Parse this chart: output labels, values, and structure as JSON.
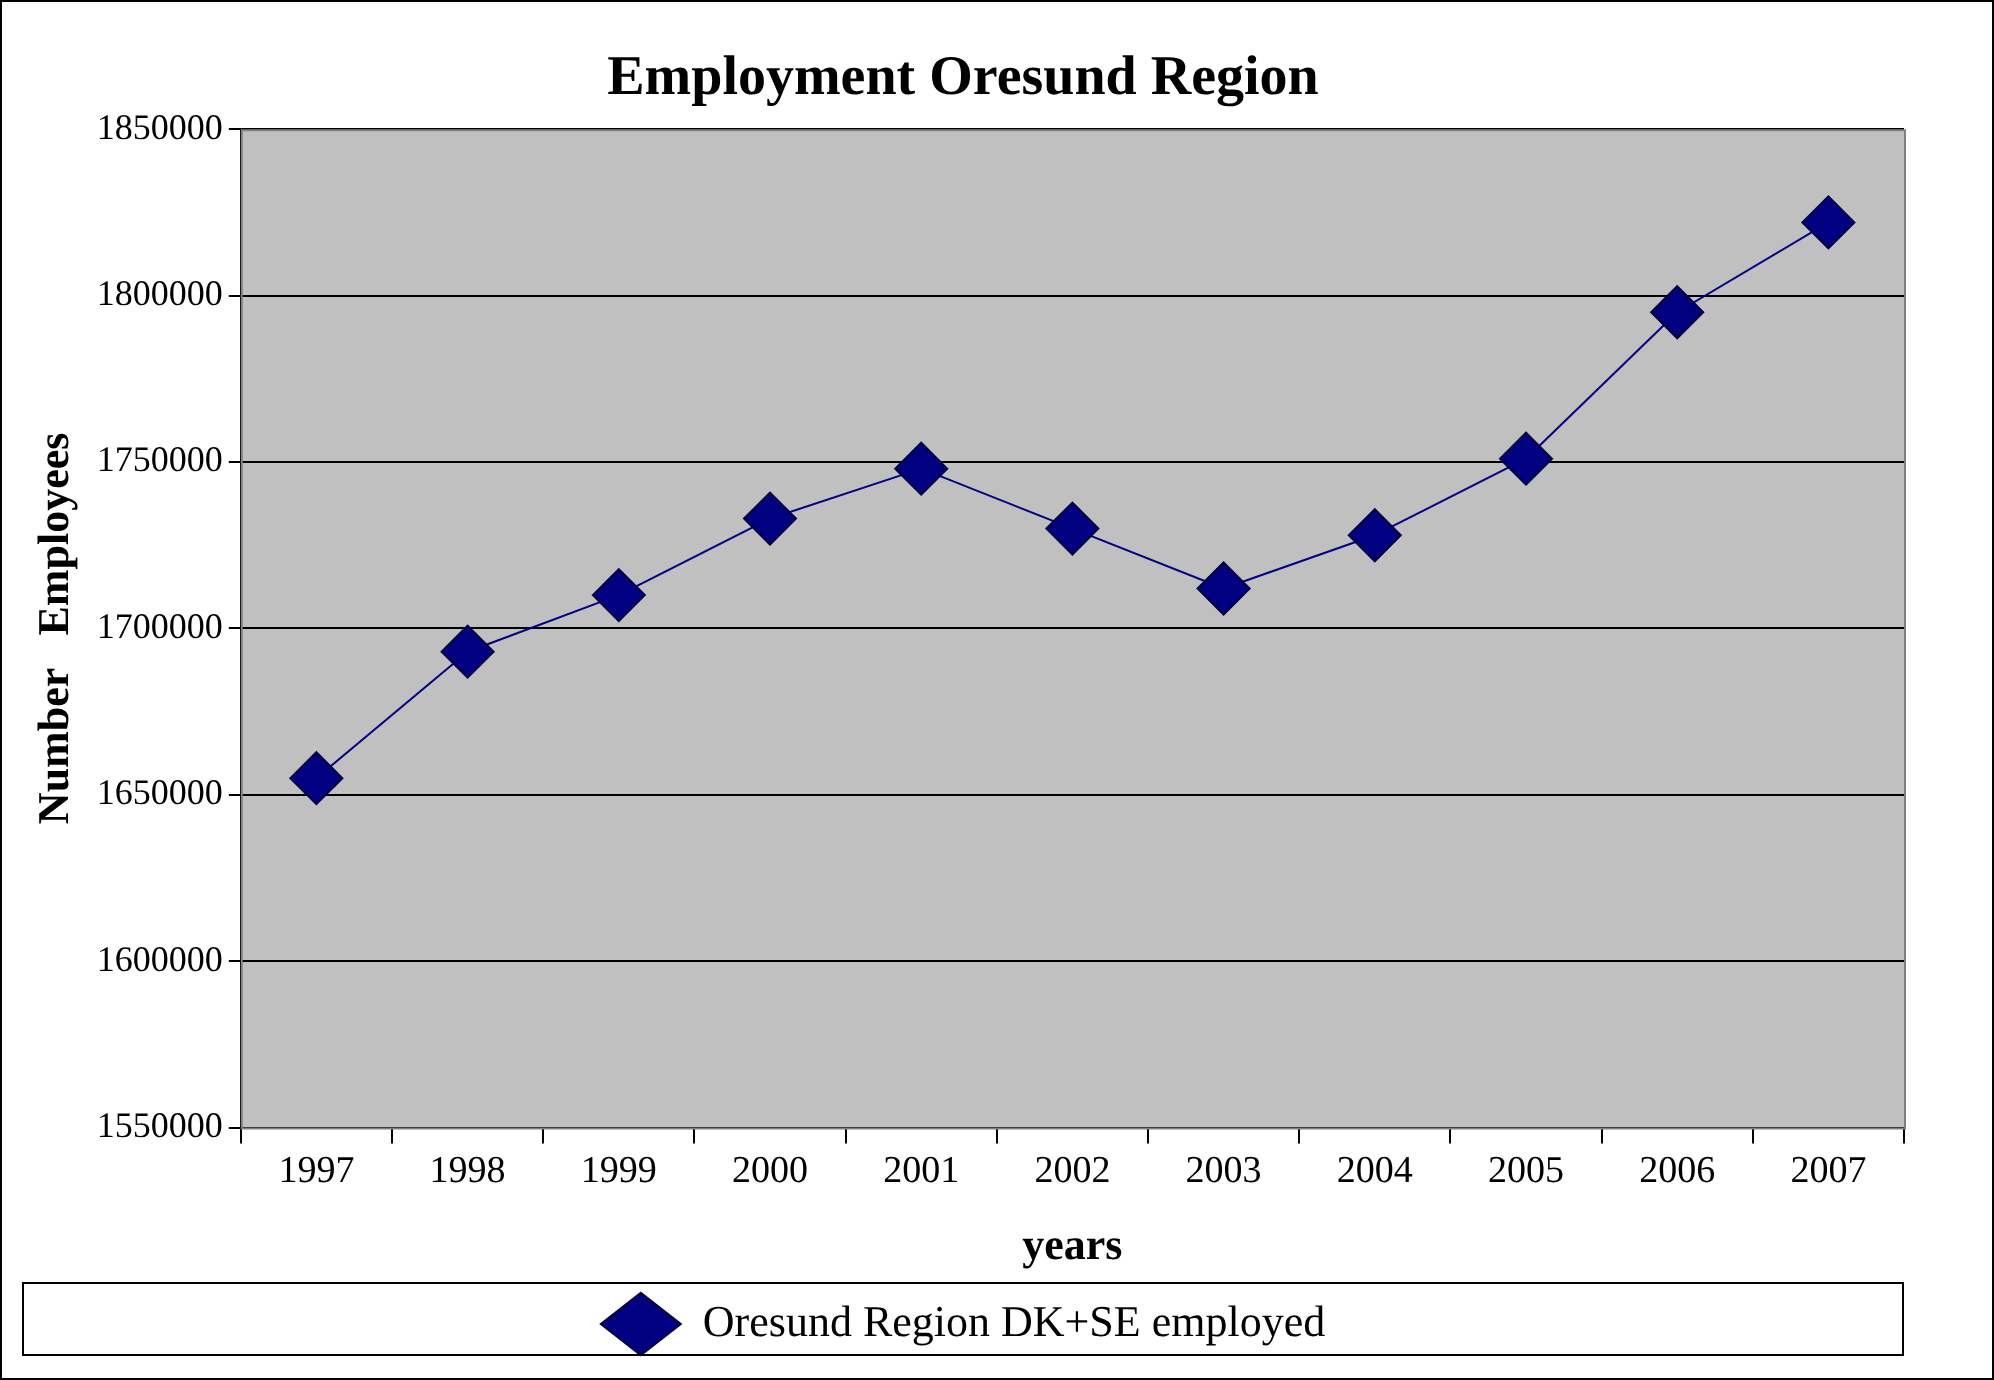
{
  "chart_data": {
    "type": "line",
    "title": "Employment Oresund Region",
    "xlabel": "years",
    "ylabel": "Number   Employees",
    "categories": [
      "1997",
      "1998",
      "1999",
      "2000",
      "2001",
      "2002",
      "2003",
      "2004",
      "2005",
      "2006",
      "2007"
    ],
    "series": [
      {
        "name": "Oresund Region DK+SE employed",
        "color": "#000080",
        "values": [
          1655000,
          1693000,
          1710000,
          1733000,
          1748000,
          1730000,
          1712000,
          1728000,
          1751000,
          1795000,
          1822000
        ]
      }
    ],
    "ylim": [
      1550000,
      1850000
    ],
    "yticks": [
      1550000,
      1600000,
      1650000,
      1700000,
      1750000,
      1800000,
      1850000
    ],
    "grid": "y",
    "legend": "bottom",
    "marker": "diamond",
    "line_style": "solid"
  }
}
